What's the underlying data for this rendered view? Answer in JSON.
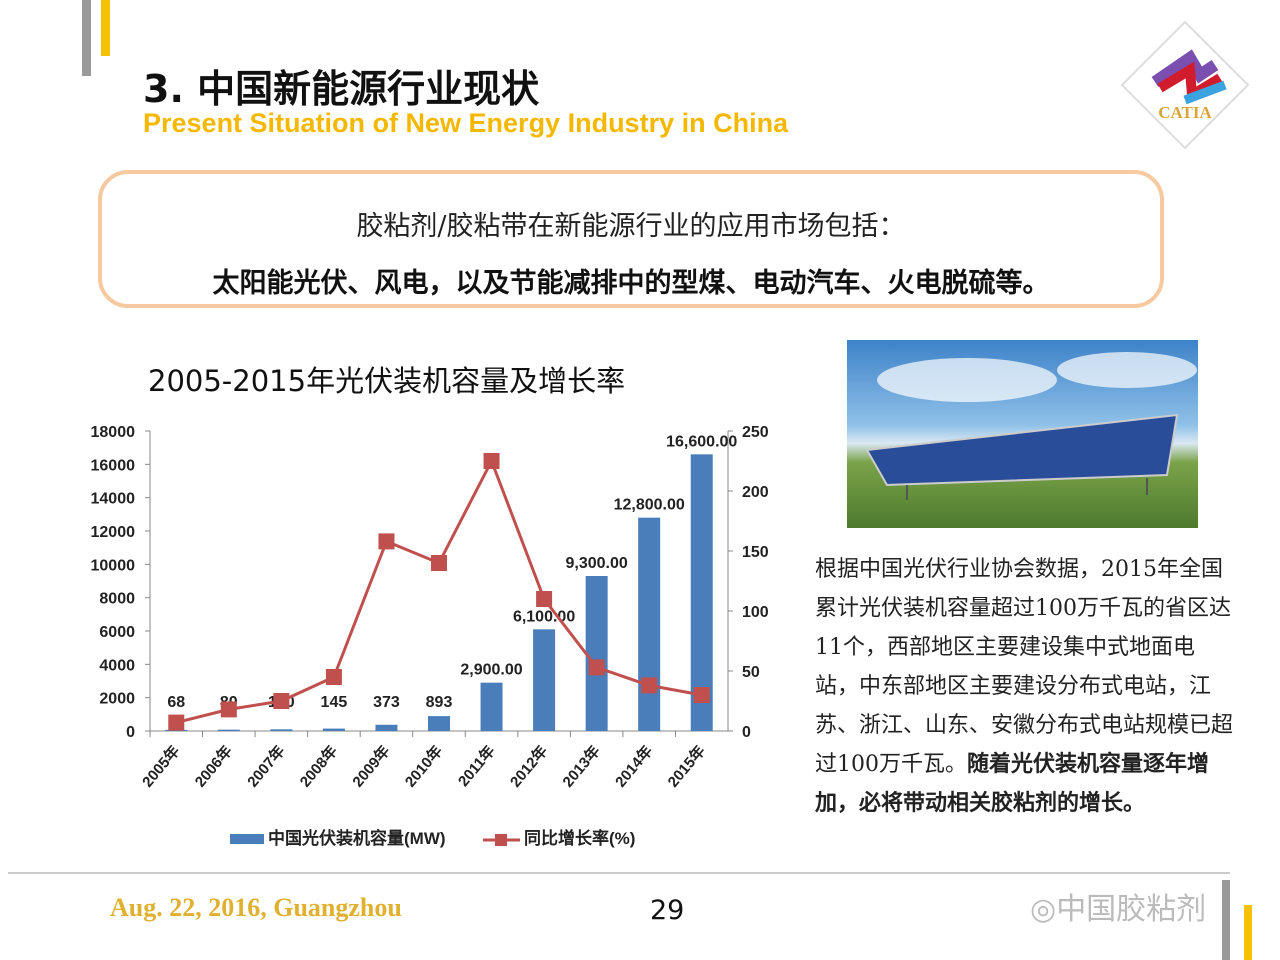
{
  "header": {
    "title": "3.  中国新能源行业现状",
    "subtitle": "Present Situation of New Energy Industry in China",
    "logo_text": "CATIA"
  },
  "callout": {
    "line1": "胶粘剂/胶粘带在新能源行业的应用市场包括：",
    "line2": "太阳能光伏、风电，以及节能减排中的型煤、电动汽车、火电脱硫等。"
  },
  "chart_title": "2005-2015年光伏装机容量及增长率",
  "chart_data": {
    "type": "bar",
    "categories": [
      "2005年",
      "2006年",
      "2007年",
      "2008年",
      "2009年",
      "2010年",
      "2011年",
      "2012年",
      "2013年",
      "2014年",
      "2015年"
    ],
    "series": [
      {
        "name": "中国光伏装机容量(MW)",
        "type": "bar",
        "axis": "left",
        "color": "#4a7ebb",
        "values": [
          68,
          80,
          100,
          145,
          373,
          893,
          2900,
          6100,
          9300,
          12800,
          16600
        ],
        "labels": [
          "68",
          "80",
          "100",
          "145",
          "373",
          "893",
          "2,900.00",
          "6,100.00",
          "9,300.00",
          "12,800.00",
          "16,600.00"
        ]
      },
      {
        "name": "同比增长率(%)",
        "type": "line",
        "axis": "right",
        "color": "#c0504d",
        "values": [
          7,
          18,
          25,
          45,
          158,
          140,
          225,
          110,
          53,
          38,
          30
        ]
      }
    ],
    "ylim": [
      0,
      18000
    ],
    "yticks": [
      0,
      2000,
      4000,
      6000,
      8000,
      10000,
      12000,
      14000,
      16000,
      18000
    ],
    "y2lim": [
      0,
      250
    ],
    "y2ticks": [
      0,
      50,
      100,
      150,
      200,
      250
    ],
    "legend": "bottom",
    "grid": false
  },
  "description": {
    "normal": "根据中国光伏行业协会数据，2015年全国累计光伏装机容量超过100万千瓦的省区达11个，西部地区主要建设集中式地面电站，中东部地区主要建设分布式电站，江苏、浙江、山东、安徽分布式电站规模已超过100万千瓦。",
    "bold": "随着光伏装机容量逐年增加，必将带动相关胶粘剂的增长。"
  },
  "footer": {
    "date": "Aug. 22, 2016, Guangzhou",
    "page": "29",
    "watermark": "中国胶粘剂"
  }
}
